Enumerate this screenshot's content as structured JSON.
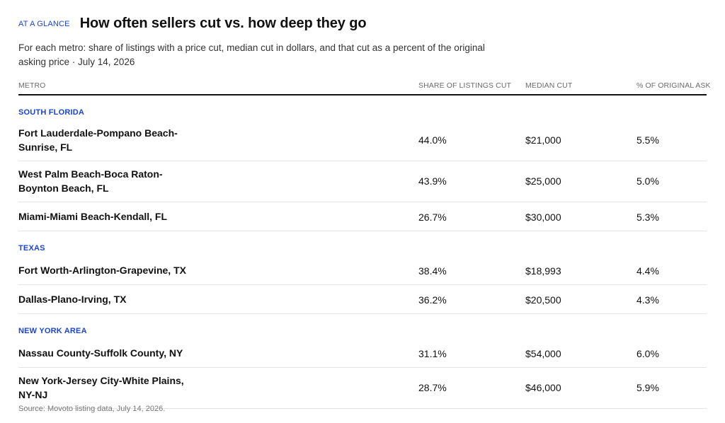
{
  "header": {
    "kicker": "AT A GLANCE",
    "title": "How often sellers cut vs. how deep they go",
    "subtitle": "For each metro: share of listings with a price cut, median cut in dollars, and that cut as a percent of the original asking price · July 14, 2026"
  },
  "columns": {
    "metro": "METRO",
    "share": "SHARE OF LISTINGS CUT",
    "cut": "MEDIAN CUT",
    "pct": "% OF ORIGINAL ASK"
  },
  "chart_data": {
    "type": "table",
    "title": "How often sellers cut vs. how deep they go",
    "columns": [
      "METRO",
      "SHARE OF LISTINGS CUT",
      "MEDIAN CUT",
      "% OF ORIGINAL ASK"
    ],
    "groups": [
      {
        "label": "SOUTH FLORIDA",
        "rows": [
          {
            "metro": "Fort Lauderdale-Pompano Beach-Sunrise, FL",
            "share": "44.0%",
            "cut": "$21,000",
            "pct": "5.5%"
          },
          {
            "metro": "West Palm Beach-Boca Raton-Boynton Beach, FL",
            "share": "43.9%",
            "cut": "$25,000",
            "pct": "5.0%"
          },
          {
            "metro": "Miami-Miami Beach-Kendall, FL",
            "share": "26.7%",
            "cut": "$30,000",
            "pct": "5.3%"
          }
        ]
      },
      {
        "label": "TEXAS",
        "rows": [
          {
            "metro": "Fort Worth-Arlington-Grapevine, TX",
            "share": "38.4%",
            "cut": "$18,993",
            "pct": "4.4%"
          },
          {
            "metro": "Dallas-Plano-Irving, TX",
            "share": "36.2%",
            "cut": "$20,500",
            "pct": "4.3%"
          }
        ]
      },
      {
        "label": "NEW YORK AREA",
        "rows": [
          {
            "metro": "Nassau County-Suffolk County, NY",
            "share": "31.1%",
            "cut": "$54,000",
            "pct": "6.0%"
          },
          {
            "metro": "New York-Jersey City-White Plains, NY-NJ",
            "share": "28.7%",
            "cut": "$46,000",
            "pct": "5.9%"
          }
        ]
      }
    ]
  },
  "footer": {
    "source": "Source: Movoto listing data, July 14, 2026."
  }
}
